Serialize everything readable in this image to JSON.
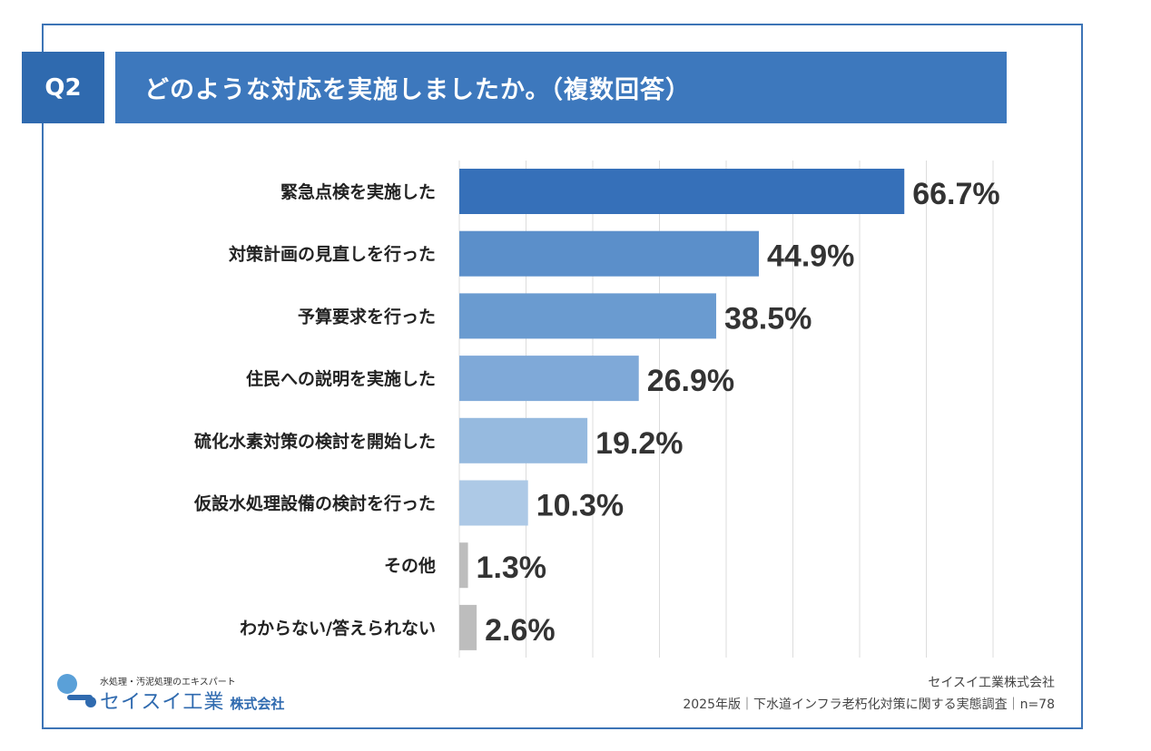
{
  "header": {
    "question_no": "Q2",
    "title": "どのような対応を実施しましたか。（複数回答）"
  },
  "chart_data": {
    "type": "bar",
    "orientation": "horizontal",
    "title": "どのような対応を実施しましたか。（複数回答）",
    "categories": [
      "緊急点検を実施した",
      "対策計画の見直しを行った",
      "予算要求を行った",
      "住民への説明を実施した",
      "硫化水素対策の検討を開始した",
      "仮設水処理設備の検討を行った",
      "その他",
      "わからない/答えられない"
    ],
    "values": [
      66.7,
      44.9,
      38.5,
      26.9,
      19.2,
      10.3,
      1.3,
      2.6
    ],
    "value_labels": [
      "66.7%",
      "44.9%",
      "38.5%",
      "26.9%",
      "19.2%",
      "10.3%",
      "1.3%",
      "2.6%"
    ],
    "bar_colors": [
      "#3670b9",
      "#5b8fca",
      "#6a9bd0",
      "#7fa9d8",
      "#96badf",
      "#adc9e6",
      "#bdbdbd",
      "#bdbdbd"
    ],
    "xlim": [
      0,
      80
    ],
    "grid": true,
    "unit": "%"
  },
  "footer": {
    "company": "セイスイ工業株式会社",
    "survey": "2025年版｜下水道インフラ老朽化対策に関する実態調査｜n=78"
  },
  "logo": {
    "tagline": "水処理・汚泥処理のエキスパート",
    "name": "セイスイ工業",
    "suffix": "株式会社",
    "primary_color": "#2f6aaf",
    "accent_color": "#5aa0d8"
  }
}
